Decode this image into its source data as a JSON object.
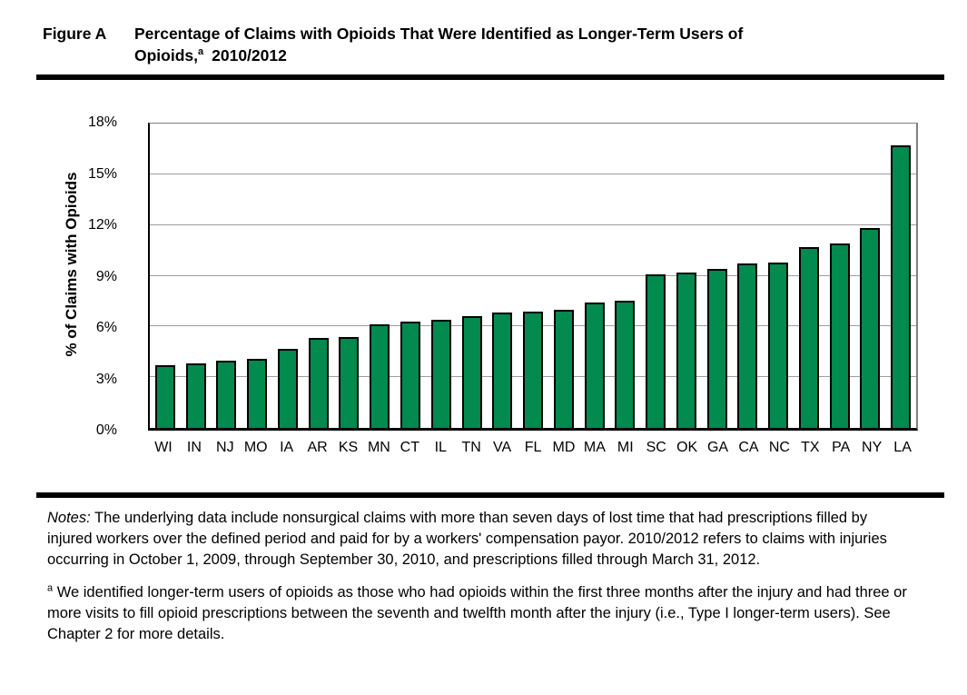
{
  "figure": {
    "label": "Figure A",
    "title_line1": "Percentage of Claims with Opioids That Were Identified as Longer-Term Users of",
    "title_line2_prefix": "Opioids,",
    "title_superscript": "a",
    "title_year": "2010/2012"
  },
  "chart_data": {
    "type": "bar",
    "title": "Percentage of Claims with Opioids That Were Identified as Longer-Term Users of Opioids, 2010/2012",
    "ylabel": "% of Claims with Opioids",
    "xlabel": "",
    "unit": "%",
    "categories": [
      "WI",
      "IN",
      "NJ",
      "MO",
      "IA",
      "AR",
      "KS",
      "MN",
      "CT",
      "IL",
      "TN",
      "VA",
      "FL",
      "MD",
      "MA",
      "MI",
      "SC",
      "OK",
      "GA",
      "CA",
      "NC",
      "TX",
      "PA",
      "NY",
      "LA"
    ],
    "values": [
      3.7,
      3.8,
      4.0,
      4.1,
      4.7,
      5.3,
      5.4,
      6.1,
      6.3,
      6.4,
      6.6,
      6.8,
      6.9,
      7.0,
      7.4,
      7.5,
      9.1,
      9.2,
      9.4,
      9.7,
      9.8,
      10.7,
      10.9,
      11.8,
      16.7
    ],
    "ylim": [
      0,
      18
    ],
    "ytick_labels": [
      "0%",
      "3%",
      "6%",
      "9%",
      "12%",
      "15%",
      "18%"
    ],
    "ytick_values": [
      0,
      3,
      6,
      9,
      12,
      15,
      18
    ],
    "grid": true,
    "legend_position": "none",
    "colors": {
      "bar_fill": "#028a4f",
      "bar_border": "#000000",
      "gridline": "#9d9d9d",
      "axis": "#000000",
      "text": "#000000"
    }
  },
  "notes": {
    "label": "Notes:",
    "body": "The underlying data include nonsurgical claims with more than seven days of lost time that had prescriptions filled by injured workers over the defined period and paid for by a workers' compensation payor. 2010/2012 refers to claims with injuries occurring in October 1, 2009, through September 30, 2010, and prescriptions filled through March 31, 2012.",
    "footnote_marker": "a",
    "footnote_body": "We identified longer-term users of opioids as those who had opioids within the first three months after the injury and had three or more visits to fill opioid prescriptions between the seventh and twelfth month after the injury (i.e., Type I longer-term users). See Chapter 2 for more details."
  }
}
